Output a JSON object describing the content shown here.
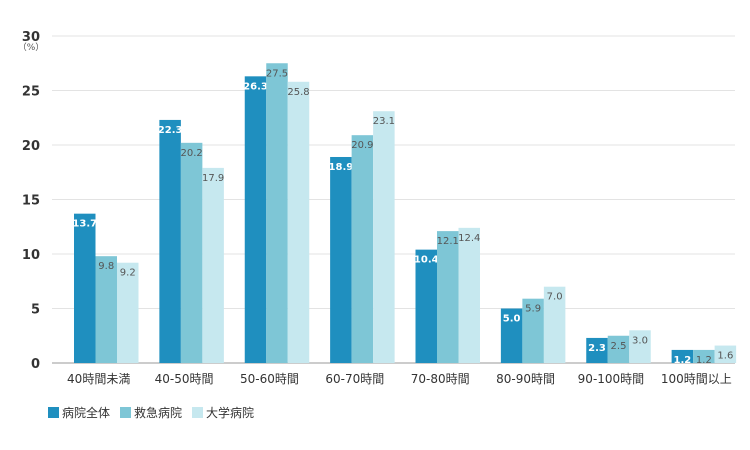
{
  "chart_data": {
    "type": "bar",
    "unit_label": "（%）",
    "categories": [
      "40時間未満",
      "40-50時間",
      "50-60時間",
      "60-70時間",
      "70-80時間",
      "80-90時間",
      "90-100時間",
      "100時間以上"
    ],
    "series": [
      {
        "name": "病院全体",
        "color": "#1f8fbf",
        "values": [
          13.7,
          22.3,
          26.3,
          18.9,
          10.4,
          5.0,
          2.3,
          1.2
        ]
      },
      {
        "name": "救急病院",
        "color": "#7ec6d6",
        "values": [
          9.8,
          20.2,
          27.5,
          20.9,
          12.1,
          5.9,
          2.5,
          1.2
        ]
      },
      {
        "name": "大学病院",
        "color": "#c6e8ef",
        "values": [
          9.2,
          17.9,
          25.8,
          23.1,
          12.4,
          7.0,
          3.0,
          1.6
        ]
      }
    ],
    "value_labels": [
      [
        "13.7",
        "22.3",
        "26.3",
        "18.9",
        "10.4",
        "5.0",
        "2.3",
        "1.2"
      ],
      [
        "9.8",
        "20.2",
        "27.5",
        "20.9",
        "12.1",
        "5.9",
        "2.5",
        "1.2"
      ],
      [
        "9.2",
        "17.9",
        "25.8",
        "23.1",
        "12.4",
        "7.0",
        "3.0",
        "1.6"
      ]
    ],
    "yticks": [
      "0",
      "5",
      "10",
      "15",
      "20",
      "25",
      "30"
    ],
    "ylim": [
      0,
      30
    ],
    "grid": true,
    "legend_position": "bottom-left"
  }
}
